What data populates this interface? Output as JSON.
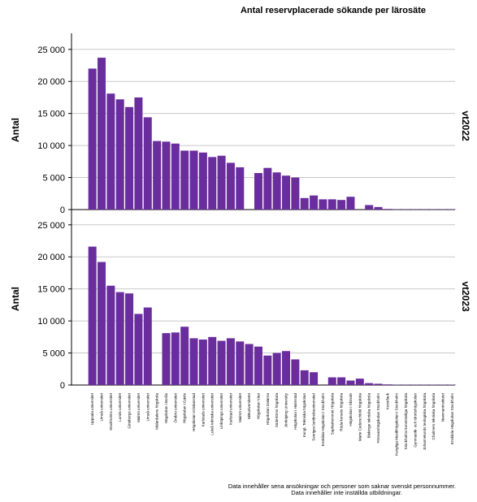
{
  "chart_data": {
    "type": "bar",
    "title": "Antal reservplacerade sökande per lärosäte",
    "ylabel": "Antal",
    "ylim": [
      0,
      27000
    ],
    "yticks": [
      "0",
      "5 000",
      "10 000",
      "15 000",
      "20 000",
      "25 000"
    ],
    "ytick_values": [
      0,
      5000,
      10000,
      15000,
      20000,
      25000
    ],
    "grid": true,
    "bar_color": "#6a2d9e",
    "categories": [
      "Uppsala universitet",
      "Umeå universitet",
      "Stockholms universitet",
      "Lunds universitet",
      "Göteborgs universitet",
      "Malmö universitet",
      "Umeå universitet",
      "Mälardalens högskola",
      "Högskolan i Borås",
      "Örebro universitet",
      "Högskolan i Gävle",
      "Högskolan Kristianstad",
      "Karlstads universitet",
      "Luleå tekniska universitet",
      "Linköpings universitet",
      "Karlstad universitet",
      "Malmö universitet",
      "Mittuniversitetet",
      "Högskolan Väst",
      "Högskolan Dalarna",
      "Södertörns högskola",
      "Jönköping University",
      "Högskolan i Halmstad",
      "Kungl. Tekniska högskolan",
      "Sveriges lantbruksuniversitet",
      "Enskilda Högskolan i Stockholm",
      "Sophiahemmet Högskola",
      "Röda korsets högskola",
      "Högskolan i Skövde",
      "Marie Cederschiöld högskola",
      "Blekinge tekniska högskola",
      "Försvarshögskolan Stockholm",
      "Konstfack",
      "Kungliga Musikhögskolan i Stockholm",
      "Stockholms konstnärliga högskola",
      "Gymnastik- och idrottshögskolan",
      "Johannelunds teologiska högskola",
      "Chalmers tekniska högskola",
      "Newmaninstitutet",
      "Enskilda Högskolan Stockholm"
    ],
    "series": [
      {
        "name": "vt2022",
        "values": [
          22000,
          23700,
          18100,
          17200,
          16000,
          17500,
          14400,
          10700,
          10600,
          10300,
          9200,
          9200,
          8900,
          8200,
          8400,
          7300,
          6600,
          0,
          5700,
          6500,
          5800,
          5300,
          5000,
          1800,
          2200,
          1600,
          1600,
          1500,
          2000,
          0,
          700,
          400,
          100,
          50,
          50,
          50,
          50,
          50,
          50,
          50
        ]
      },
      {
        "name": "vt2023",
        "values": [
          21600,
          19200,
          15500,
          14500,
          14300,
          11100,
          12100,
          0,
          8100,
          8200,
          9100,
          7300,
          7100,
          7500,
          6900,
          7300,
          6800,
          6400,
          6000,
          4600,
          5000,
          5300,
          4000,
          2300,
          2000,
          0,
          1200,
          1200,
          700,
          1000,
          300,
          200,
          100,
          50,
          50,
          50,
          50,
          50,
          50,
          50
        ]
      }
    ]
  },
  "notes": {
    "line1": "Data innehåller sena ansökningar och personer som saknar svenskt personnummer.",
    "line2": "Data innehåller inte inställda utbildningar."
  }
}
